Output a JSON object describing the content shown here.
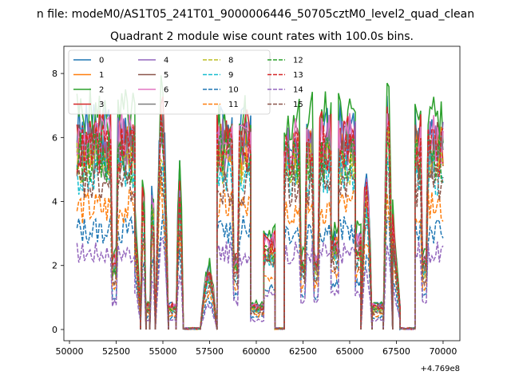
{
  "page": {
    "suptitle": "n file: modeM0/AS1T05_241T01_9000006446_50705cztM0_level2_quad_clean"
  },
  "chart_data": {
    "type": "line",
    "title": "Quadrant 2 module wise count rates with 100.0s bins.",
    "xlabel": "",
    "ylabel": "",
    "x_offset_label": "+4.769e8",
    "xlim": [
      49700,
      70900
    ],
    "ylim": [
      -0.35,
      8.85
    ],
    "xticks": [
      50000,
      52500,
      55000,
      57500,
      60000,
      62500,
      65000,
      67500,
      70000
    ],
    "xtick_labels": [
      "50000",
      "52500",
      "55000",
      "57500",
      "60000",
      "62500",
      "65000",
      "67500",
      "70000"
    ],
    "yticks": [
      0,
      2,
      4,
      6,
      8
    ],
    "ytick_labels": [
      "0",
      "2",
      "4",
      "6",
      "8"
    ],
    "grid": false,
    "legend": {
      "placement": "top-left",
      "columns": 4
    },
    "segments": [
      {
        "start": 50400,
        "end": 53500,
        "shape": "plateau",
        "dips": [
          52400
        ]
      },
      {
        "start": 53500,
        "end": 53800,
        "shape": "taper"
      },
      {
        "start": 53800,
        "end": 54100,
        "shape": "spike"
      },
      {
        "start": 54100,
        "end": 54300,
        "shape": "low"
      },
      {
        "start": 54300,
        "end": 54600,
        "shape": "spike"
      },
      {
        "start": 54600,
        "end": 55300,
        "shape": "peak"
      },
      {
        "start": 55300,
        "end": 55700,
        "shape": "low"
      },
      {
        "start": 55700,
        "end": 56100,
        "shape": "spike"
      },
      {
        "start": 56100,
        "end": 57000,
        "shape": "zero"
      },
      {
        "start": 57000,
        "end": 57900,
        "shape": "hump"
      },
      {
        "start": 57900,
        "end": 59700,
        "shape": "plateau",
        "dips": [
          58900
        ]
      },
      {
        "start": 59700,
        "end": 60400,
        "shape": "low"
      },
      {
        "start": 60400,
        "end": 61000,
        "shape": "dip"
      },
      {
        "start": 61000,
        "end": 61500,
        "shape": "zero"
      },
      {
        "start": 61500,
        "end": 64000,
        "shape": "plateau",
        "dips": [
          62500,
          63200
        ]
      },
      {
        "start": 64000,
        "end": 64400,
        "shape": "dip"
      },
      {
        "start": 64400,
        "end": 65300,
        "shape": "plateau"
      },
      {
        "start": 65300,
        "end": 65600,
        "shape": "dip"
      },
      {
        "start": 65600,
        "end": 66200,
        "shape": "spike"
      },
      {
        "start": 66200,
        "end": 66800,
        "shape": "low"
      },
      {
        "start": 66800,
        "end": 67300,
        "shape": "peak"
      },
      {
        "start": 67300,
        "end": 67700,
        "shape": "taper"
      },
      {
        "start": 67700,
        "end": 68500,
        "shape": "zero"
      },
      {
        "start": 68500,
        "end": 70000,
        "shape": "plateau",
        "dips": [
          69000
        ]
      }
    ],
    "series": [
      {
        "name": "0",
        "color": "#1f77b4",
        "dash": "solid",
        "level": 6.2
      },
      {
        "name": "1",
        "color": "#ff7f0e",
        "dash": "solid",
        "level": 5.6
      },
      {
        "name": "2",
        "color": "#2ca02c",
        "dash": "solid",
        "level": 6.6
      },
      {
        "name": "3",
        "color": "#d62728",
        "dash": "solid",
        "level": 6.0
      },
      {
        "name": "4",
        "color": "#9467bd",
        "dash": "solid",
        "level": 5.8
      },
      {
        "name": "5",
        "color": "#8c564b",
        "dash": "solid",
        "level": 5.7
      },
      {
        "name": "6",
        "color": "#e377c2",
        "dash": "solid",
        "level": 5.9
      },
      {
        "name": "7",
        "color": "#7f7f7f",
        "dash": "solid",
        "level": 5.5
      },
      {
        "name": "8",
        "color": "#bcbd22",
        "dash": "dashed",
        "level": 5.2
      },
      {
        "name": "9",
        "color": "#17becf",
        "dash": "dashed",
        "level": 4.8
      },
      {
        "name": "10",
        "color": "#1f77b4",
        "dash": "dashed",
        "level": 3.1
      },
      {
        "name": "11",
        "color": "#ff7f0e",
        "dash": "dashed",
        "level": 3.8
      },
      {
        "name": "12",
        "color": "#2ca02c",
        "dash": "dashed",
        "level": 5.4
      },
      {
        "name": "13",
        "color": "#d62728",
        "dash": "dashed",
        "level": 5.6
      },
      {
        "name": "14",
        "color": "#9467bd",
        "dash": "dashed",
        "level": 2.4
      },
      {
        "name": "15",
        "color": "#8c564b",
        "dash": "dashed",
        "level": 4.5
      }
    ]
  }
}
